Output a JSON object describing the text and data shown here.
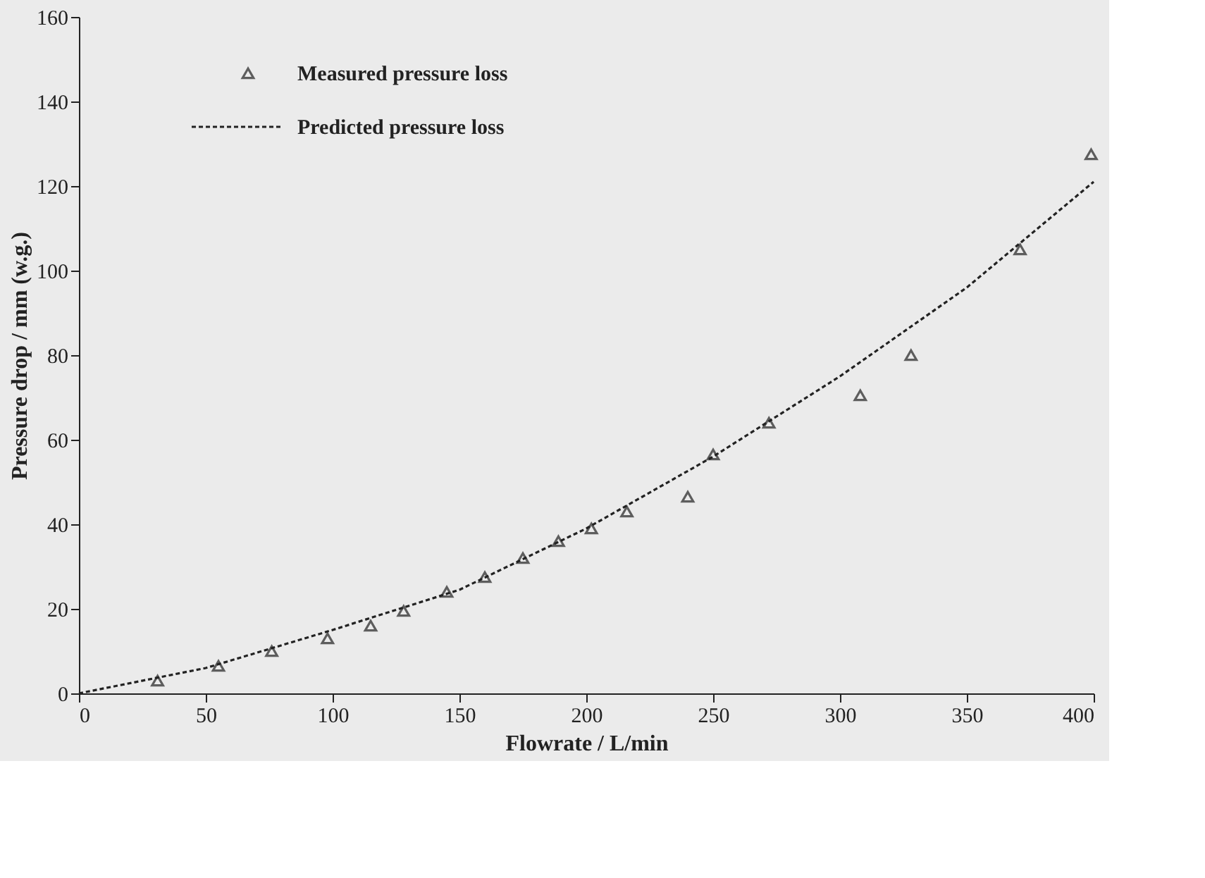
{
  "chart_data": {
    "type": "scatter",
    "xlabel": "Flowrate / L/min",
    "ylabel": "Pressure drop / mm (w.g.)",
    "xlim": [
      0,
      400
    ],
    "ylim": [
      0,
      160
    ],
    "xticks": [
      0,
      50,
      100,
      150,
      200,
      250,
      300,
      350,
      400
    ],
    "yticks": [
      0,
      20,
      40,
      60,
      80,
      100,
      120,
      140,
      160
    ],
    "grid": false,
    "legend": "top left",
    "series": [
      {
        "name": "Measured pressure loss",
        "marker": "triangle",
        "color": "#222222",
        "x": [
          31,
          55,
          76,
          98,
          115,
          128,
          145,
          160,
          175,
          189,
          202,
          216,
          240,
          250,
          272,
          308,
          328,
          371,
          399
        ],
        "values": [
          3,
          6.5,
          10,
          13,
          16,
          19.5,
          24,
          27.5,
          32,
          36,
          39,
          43,
          46.5,
          56.5,
          64,
          70.5,
          80,
          105,
          127.5
        ]
      },
      {
        "name": "Predicted pressure loss",
        "type": "line",
        "line_style": "dashed",
        "color": "#222222",
        "x": [
          0,
          50,
          100,
          150,
          200,
          250,
          300,
          350,
          400
        ],
        "values": [
          0,
          6,
          15,
          24.5,
          39,
          56,
          75,
          96,
          121
        ]
      }
    ]
  }
}
